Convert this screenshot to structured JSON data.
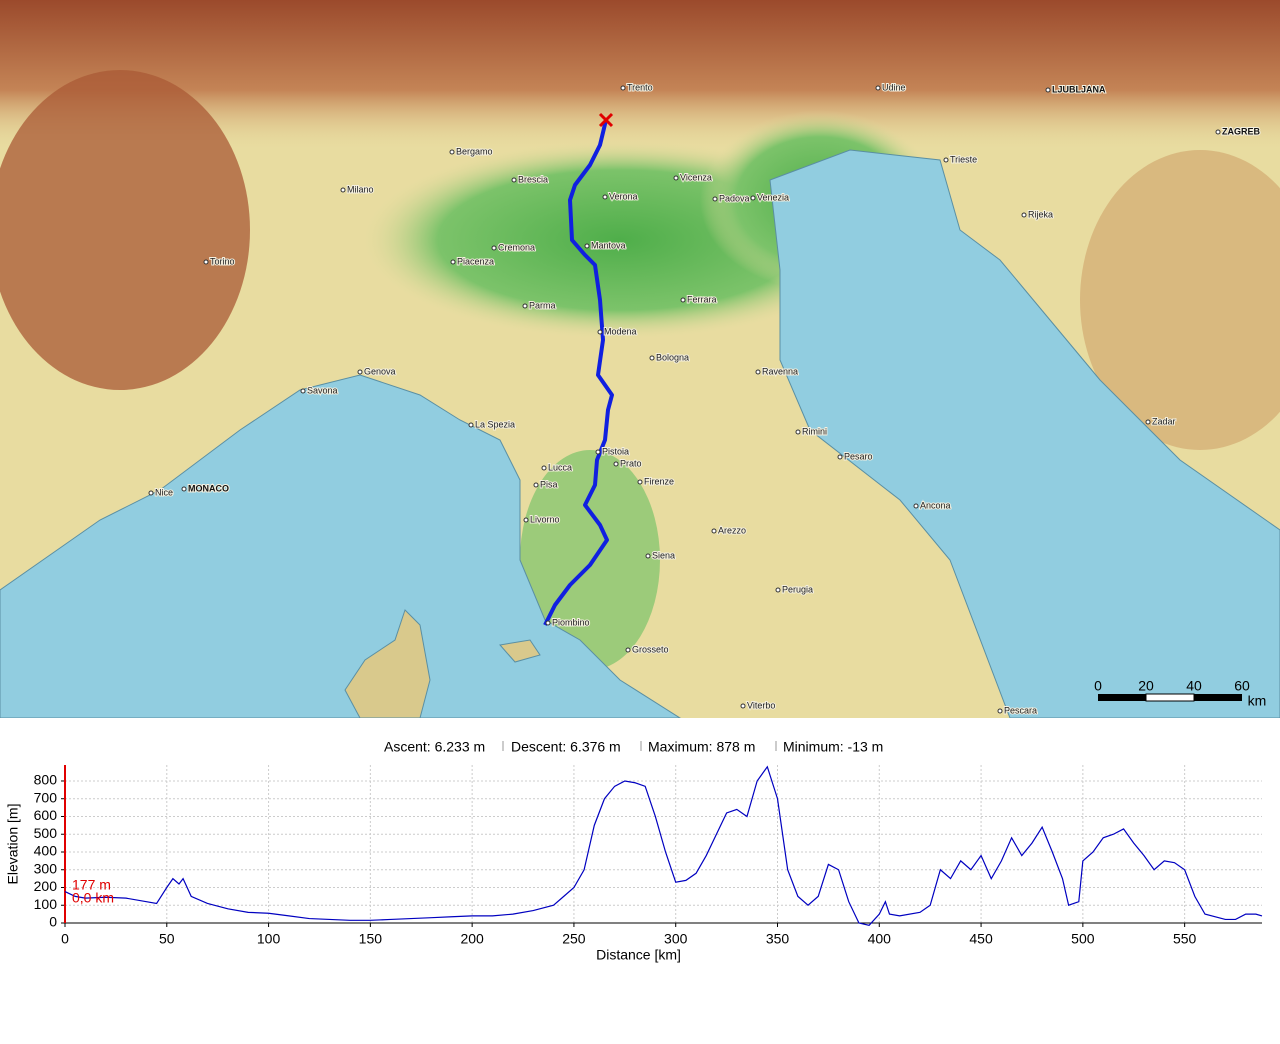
{
  "map": {
    "labels": [
      "Milano",
      "Torino",
      "Genova",
      "Bologna",
      "Firenze",
      "Venezia",
      "Verona",
      "Parma",
      "Mantova",
      "Modena",
      "Padova",
      "Vicenza",
      "Trento",
      "Brescia",
      "Bergamo",
      "Cremona",
      "Piacenza",
      "Ferrara",
      "Ravenna",
      "Livorno",
      "Pisa",
      "Lucca",
      "Siena",
      "Grosseto",
      "Piombino",
      "Arezzo",
      "Perugia",
      "Ancona",
      "Rimini",
      "Pesaro",
      "Trieste",
      "LJUBLJANA",
      "ZAGREB",
      "MONACO",
      "Nice",
      "Savona",
      "La Spezia",
      "Udine",
      "Rijeka",
      "Zadar",
      "Prato",
      "Pistoia",
      "Viterbo",
      "Pescara"
    ],
    "scale_bar": {
      "ticks": [
        "0",
        "20",
        "40",
        "60"
      ],
      "unit": "km"
    }
  },
  "stats": {
    "ascent": "Ascent: 6.233 m",
    "descent": "Descent: 6.376 m",
    "maximum": "Maximum: 878 m",
    "minimum": "Minimum: -13 m"
  },
  "chart_data": {
    "type": "line",
    "xlabel": "Distance [km]",
    "ylabel": "Elevation [m]",
    "color": "#0000c0",
    "x": [
      0,
      5,
      10,
      20,
      30,
      40,
      45,
      50,
      53,
      56,
      58,
      62,
      70,
      80,
      90,
      100,
      110,
      120,
      130,
      140,
      150,
      160,
      170,
      180,
      190,
      200,
      210,
      220,
      230,
      240,
      245,
      250,
      255,
      260,
      265,
      270,
      275,
      280,
      285,
      290,
      295,
      300,
      305,
      310,
      315,
      320,
      325,
      330,
      335,
      340,
      345,
      350,
      355,
      360,
      365,
      370,
      375,
      380,
      385,
      390,
      395,
      400,
      403,
      405,
      410,
      420,
      425,
      430,
      435,
      440,
      445,
      450,
      455,
      460,
      465,
      470,
      475,
      480,
      485,
      490,
      493,
      498,
      500,
      505,
      510,
      515,
      520,
      525,
      530,
      535,
      540,
      545,
      550,
      555,
      560,
      570,
      575,
      580,
      585,
      588
    ],
    "values": [
      177,
      150,
      140,
      145,
      140,
      120,
      110,
      200,
      250,
      220,
      250,
      150,
      110,
      80,
      60,
      55,
      40,
      25,
      20,
      15,
      15,
      20,
      25,
      30,
      35,
      40,
      40,
      50,
      70,
      100,
      150,
      200,
      300,
      550,
      700,
      770,
      800,
      790,
      770,
      600,
      400,
      230,
      240,
      280,
      380,
      500,
      620,
      640,
      600,
      800,
      880,
      700,
      300,
      150,
      100,
      150,
      330,
      300,
      120,
      0,
      -13,
      50,
      120,
      50,
      40,
      60,
      100,
      300,
      250,
      350,
      300,
      380,
      250,
      350,
      480,
      380,
      450,
      540,
      400,
      250,
      100,
      120,
      350,
      400,
      480,
      500,
      530,
      450,
      380,
      300,
      350,
      340,
      300,
      150,
      50,
      20,
      20,
      50,
      50,
      40
    ],
    "xlim": [
      0,
      588
    ],
    "ylim": [
      0,
      890
    ],
    "xticks": [
      0,
      50,
      100,
      150,
      200,
      250,
      300,
      350,
      400,
      450,
      500,
      550
    ],
    "yticks": [
      0,
      100,
      200,
      300,
      400,
      500,
      600,
      700,
      800
    ],
    "grid": true,
    "start_marker": {
      "elevation_label": "177 m",
      "distance_label": "0,0 km",
      "color": "#e00000"
    }
  }
}
